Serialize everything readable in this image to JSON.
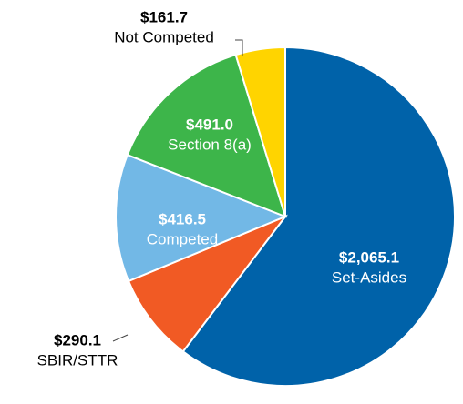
{
  "chart_data": {
    "type": "pie",
    "categories": [
      "Set-Asides",
      "SBIR/STTR",
      "Competed",
      "Section 8(a)",
      "Not Competed"
    ],
    "values": [
      2065.1,
      290.1,
      416.5,
      491.0,
      161.7
    ],
    "value_labels": [
      "$2,065.1",
      "$290.1",
      "$416.5",
      "$491.0",
      "$161.7"
    ],
    "colors": [
      "#0062a9",
      "#f15a24",
      "#72b8e6",
      "#3db54a",
      "#ffd400"
    ]
  }
}
